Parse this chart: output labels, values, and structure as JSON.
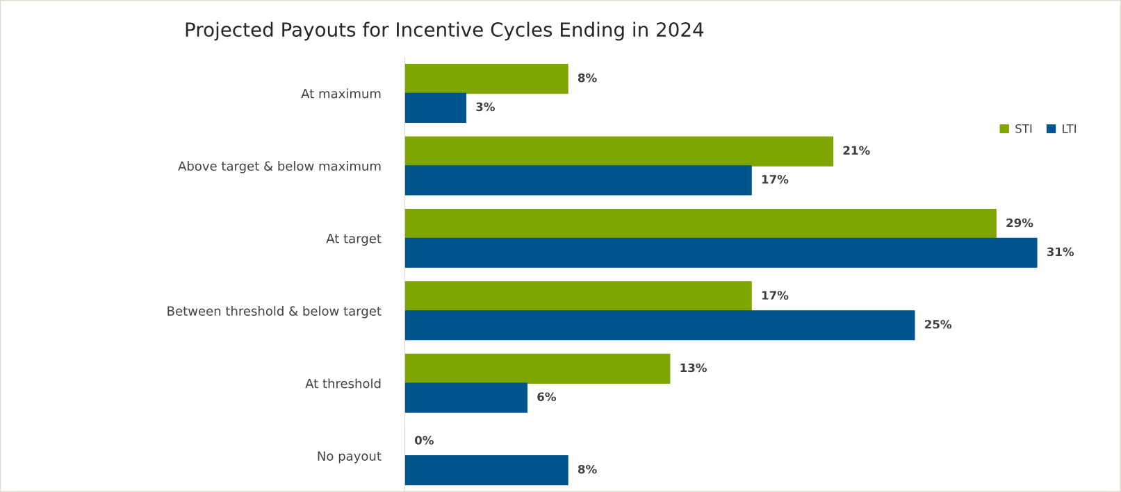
{
  "chart_data": {
    "type": "bar",
    "orientation": "horizontal",
    "title": "Projected Payouts for Incentive Cycles Ending in 2024",
    "categories": [
      "At maximum",
      "Above target & below maximum",
      "At target",
      "Between threshold & below target",
      "At threshold",
      "No payout"
    ],
    "series": [
      {
        "name": "STI",
        "color": "#7fa500",
        "values": [
          8,
          21,
          29,
          17,
          13,
          0
        ],
        "value_labels": [
          "8%",
          "21%",
          "29%",
          "17%",
          "13%",
          "0%"
        ]
      },
      {
        "name": "LTI",
        "color": "#00558c",
        "values": [
          3,
          17,
          31,
          25,
          6,
          8
        ],
        "value_labels": [
          "3%",
          "17%",
          "31%",
          "25%",
          "6%",
          "8%"
        ]
      }
    ],
    "legend": "top right"
  }
}
